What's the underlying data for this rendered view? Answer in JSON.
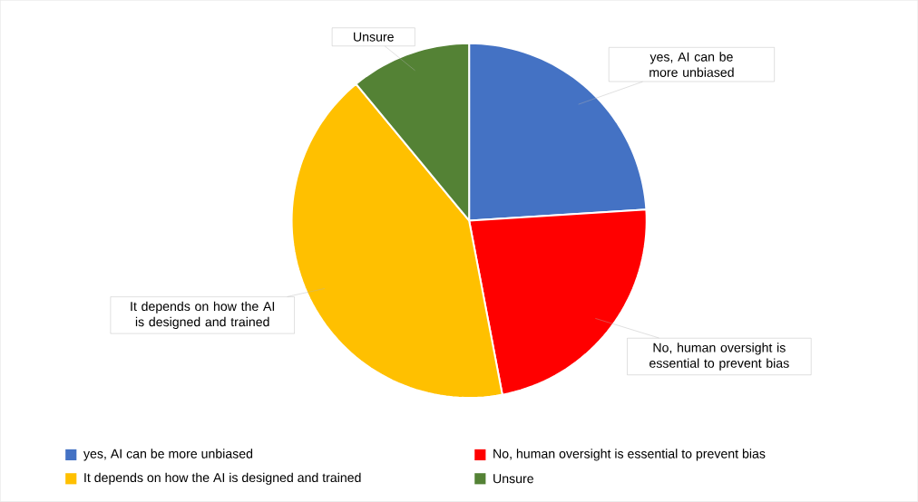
{
  "chart_data": {
    "type": "pie",
    "categories": [
      "yes, AI can be more unbiased",
      "No, human oversight is essential to prevent bias",
      "It depends on how the AI is designed and trained",
      "Unsure"
    ],
    "values": [
      24,
      23,
      42,
      11
    ],
    "colors": [
      "#4472c4",
      "#ff0000",
      "#ffc000",
      "#548235"
    ],
    "legend": "bottom"
  }
}
